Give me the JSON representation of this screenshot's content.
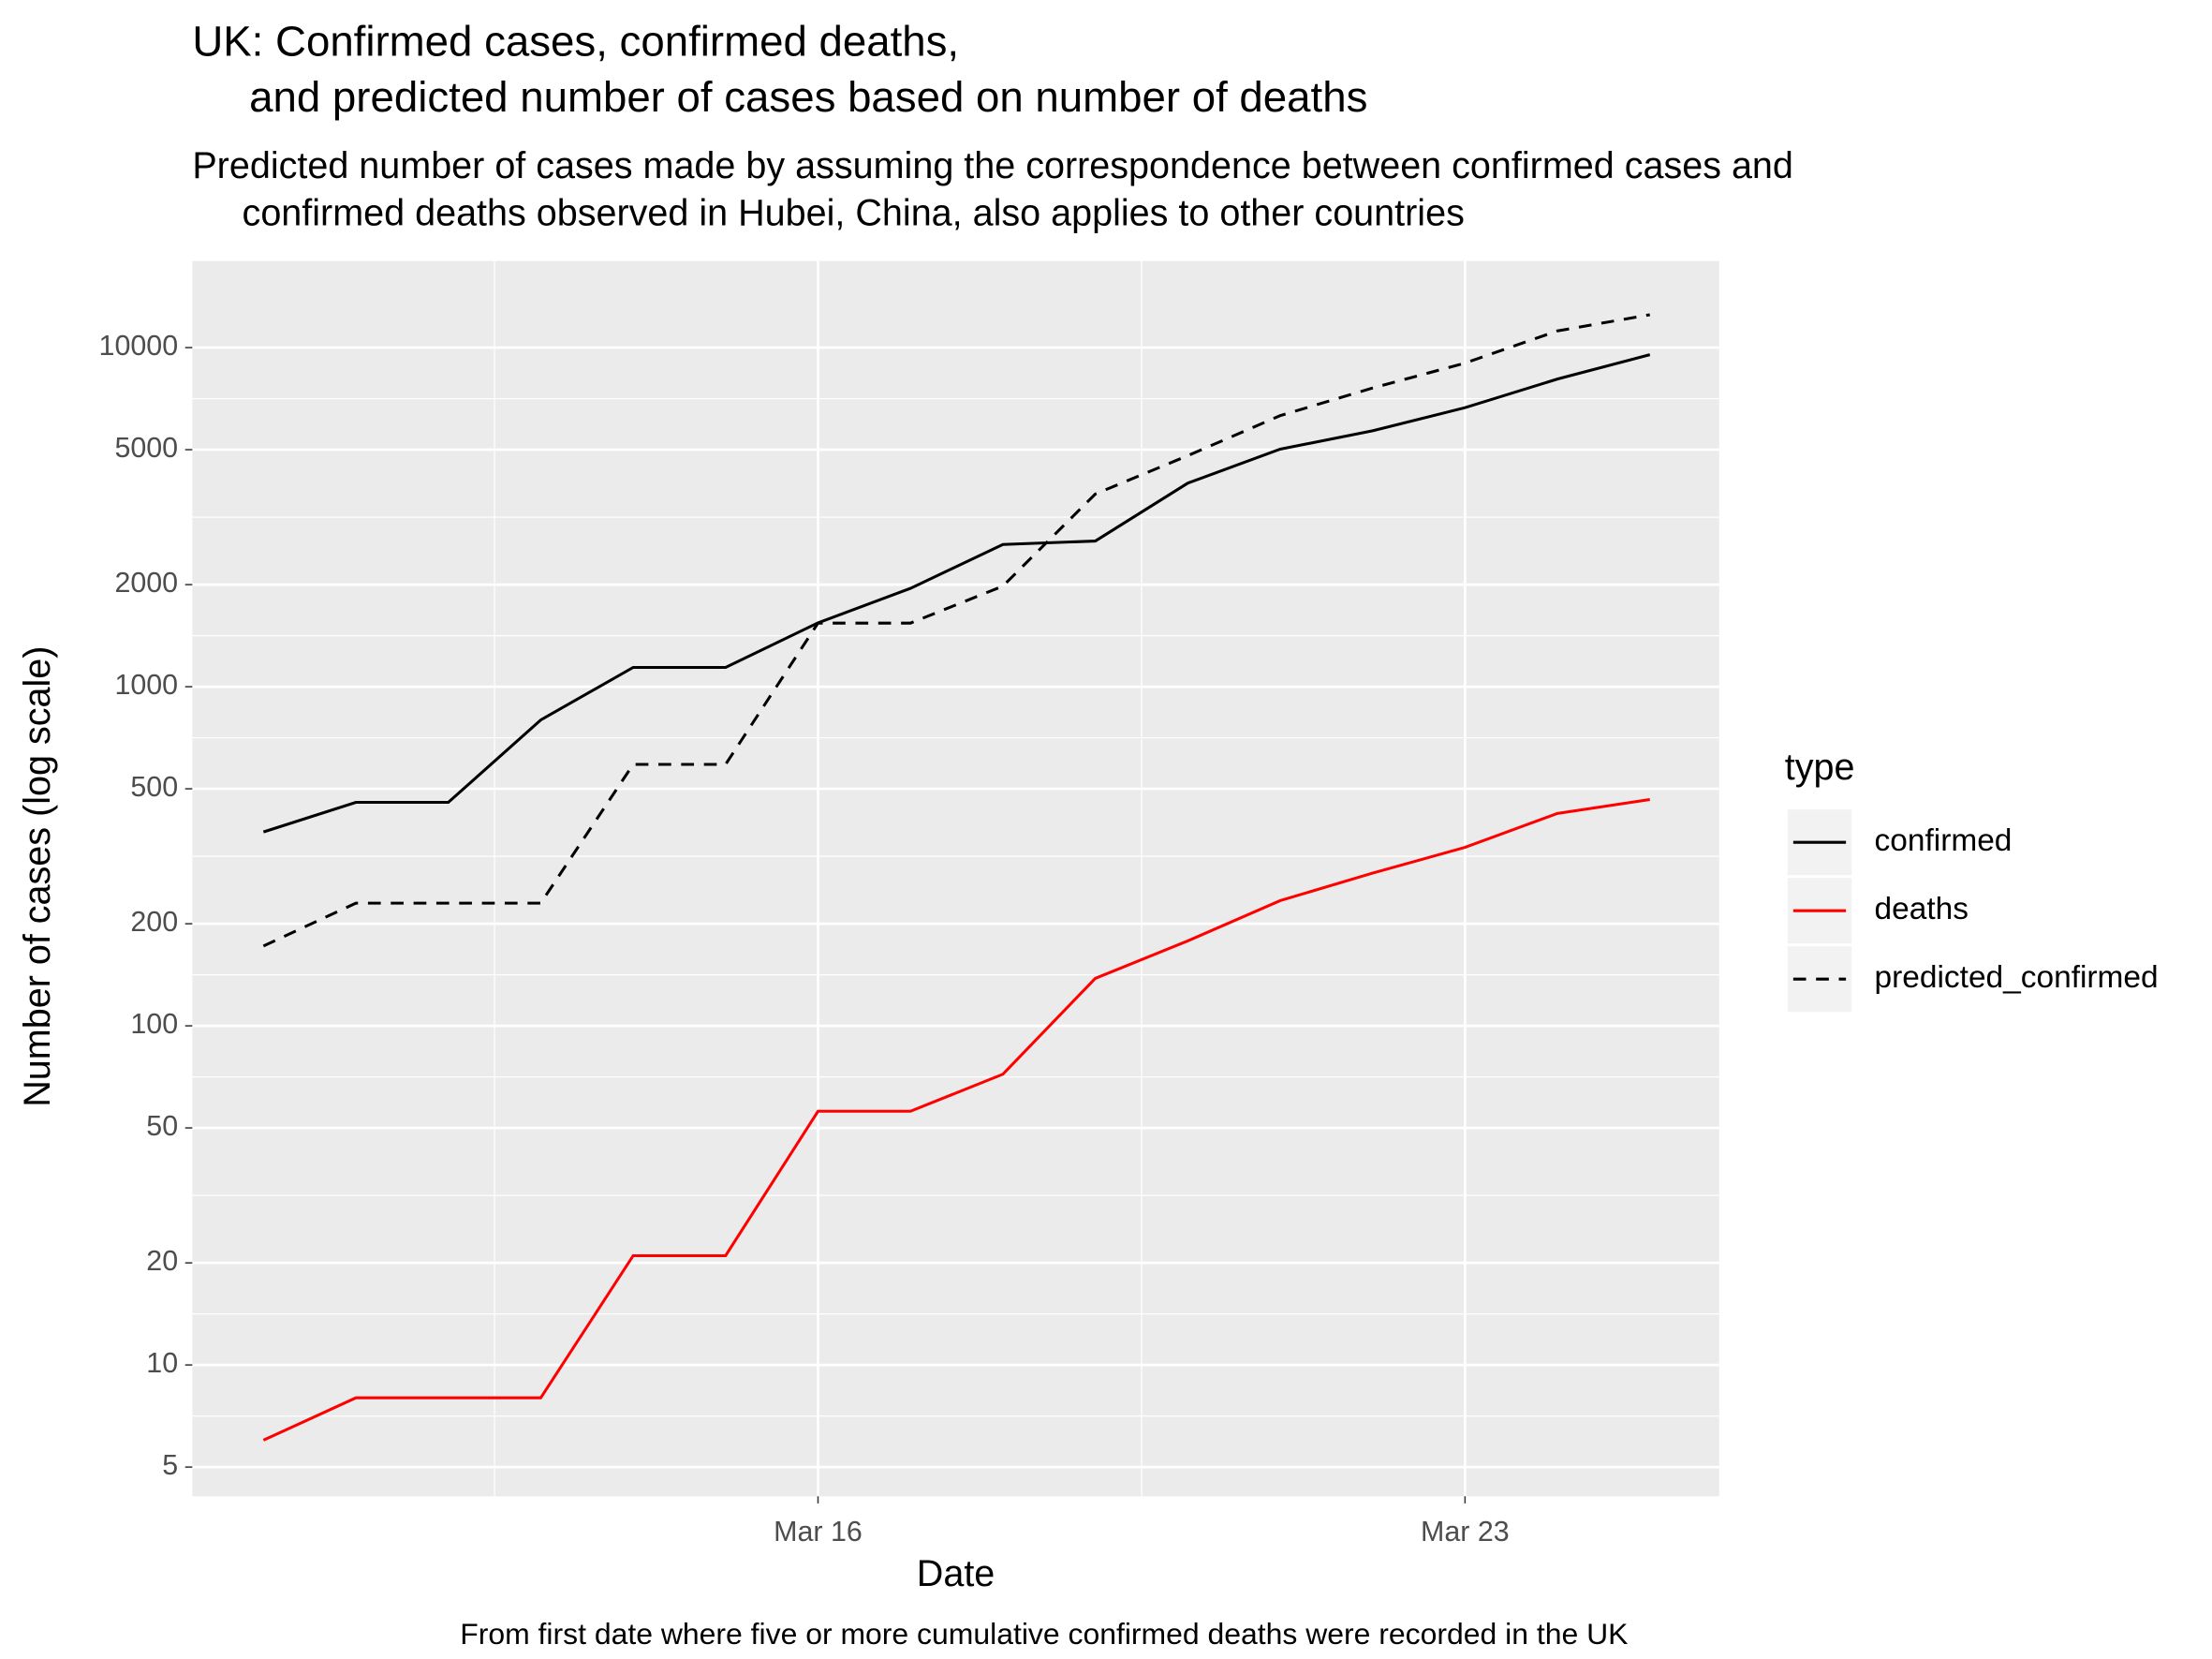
{
  "chart_data": {
    "type": "line",
    "title": [
      "UK: Confirmed cases, confirmed deaths,",
      "and predicted number of cases based on number of deaths"
    ],
    "subtitle": [
      "Predicted number of cases made by assuming the correspondence between confirmed cases and",
      "confirmed deaths observed in Hubei, China, also applies to other countries"
    ],
    "caption": "From first date where five or more cumulative confirmed deaths were recorded in the UK",
    "x_label": "Date",
    "y_label": "Number of cases (log scale)",
    "legend_title": "type",
    "legend_position": "right",
    "y_scale": "log",
    "grid": true,
    "x": [
      "Mar 10",
      "Mar 11",
      "Mar 12",
      "Mar 13",
      "Mar 14",
      "Mar 15",
      "Mar 16",
      "Mar 17",
      "Mar 18",
      "Mar 19",
      "Mar 20",
      "Mar 21",
      "Mar 22",
      "Mar 23",
      "Mar 24",
      "Mar 25"
    ],
    "xlim": [
      "Mar 10",
      "Mar 25"
    ],
    "xticks": [
      "Mar 16",
      "Mar 23"
    ],
    "ylim": [
      4.1,
      18000
    ],
    "yticks": [
      5,
      10,
      20,
      50,
      100,
      200,
      500,
      1000,
      2000,
      5000,
      10000
    ],
    "series": [
      {
        "name": "confirmed",
        "color": "#000000",
        "dashed": false,
        "values": [
          373,
          456,
          456,
          798,
          1140,
          1140,
          1543,
          1950,
          2626,
          2689,
          3983,
          5018,
          5683,
          6650,
          8077,
          9529
        ]
      },
      {
        "name": "deaths",
        "color": "#FF0000",
        "dashed": false,
        "values": [
          6,
          8,
          8,
          8,
          21,
          21,
          56,
          56,
          72,
          138,
          178,
          234,
          282,
          336,
          423,
          465
        ]
      },
      {
        "name": "predicted_confirmed",
        "color": "#000000",
        "dashed": true,
        "values": [
          172,
          230,
          230,
          230,
          590,
          590,
          1540,
          1540,
          1980,
          3700,
          4800,
          6300,
          7600,
          9000,
          11200,
          12500
        ]
      }
    ]
  }
}
